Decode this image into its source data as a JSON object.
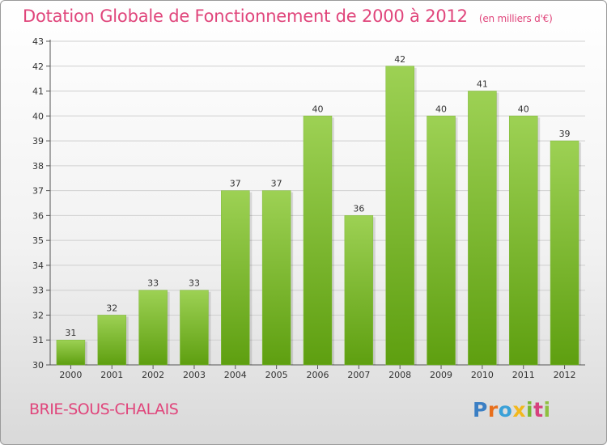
{
  "header": {
    "title": "Dotation Globale de Fonctionnement de 2000 à 2012",
    "unit": "(en milliers d'€)"
  },
  "footer": {
    "commune": "BRIE-SOUS-CHALAIS",
    "logo_letters": [
      "P",
      "r",
      "o",
      "x",
      "i",
      "t",
      "i"
    ]
  },
  "colors": {
    "title": "#e0457b",
    "bar_top": "#9dd154",
    "bar_bottom": "#5e9f10",
    "grid": "#cfcfcf"
  },
  "chart_data": {
    "type": "bar",
    "title": "Dotation Globale de Fonctionnement de 2000 à 2012",
    "xlabel": "",
    "ylabel": "",
    "ylim": [
      30,
      43
    ],
    "yticks": [
      30,
      31,
      32,
      33,
      34,
      35,
      36,
      37,
      38,
      39,
      40,
      41,
      42,
      43
    ],
    "grid": true,
    "categories": [
      "2000",
      "2001",
      "2002",
      "2003",
      "2004",
      "2005",
      "2006",
      "2007",
      "2008",
      "2009",
      "2010",
      "2011",
      "2012"
    ],
    "values": [
      31,
      32,
      33,
      33,
      37,
      37,
      40,
      36,
      42,
      40,
      41,
      40,
      39
    ]
  }
}
